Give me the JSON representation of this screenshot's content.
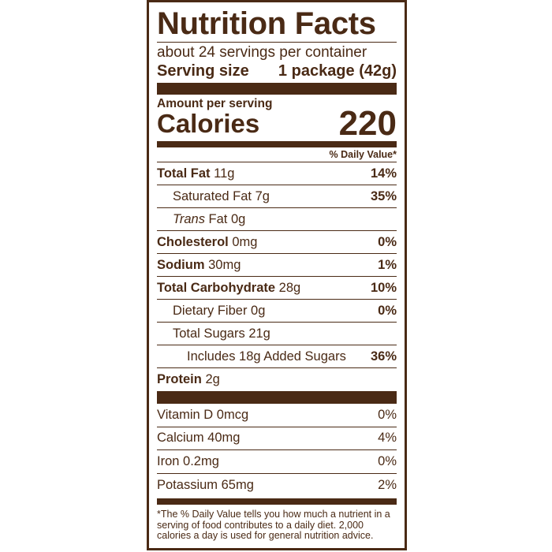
{
  "label": {
    "title": "Nutrition Facts",
    "servings_per_container": "about 24 servings per container",
    "serving_size_label": "Serving size",
    "serving_size_value": "1 package (42g)",
    "amount_per_serving": "Amount per serving",
    "calories_label": "Calories",
    "calories_value": "220",
    "daily_value_header": "% Daily Value*",
    "nutrients": {
      "total_fat": {
        "name": "Total Fat",
        "amount": "11g",
        "dv": "14%"
      },
      "saturated_fat": {
        "name": "Saturated Fat",
        "amount": "7g",
        "dv": "35%"
      },
      "trans_fat": {
        "name_italic": "Trans",
        "name": "Fat",
        "amount": "0g"
      },
      "cholesterol": {
        "name": "Cholesterol",
        "amount": "0mg",
        "dv": "0%"
      },
      "sodium": {
        "name": "Sodium",
        "amount": "30mg",
        "dv": "1%"
      },
      "total_carbohydrate": {
        "name": "Total Carbohydrate",
        "amount": "28g",
        "dv": "10%"
      },
      "dietary_fiber": {
        "name": "Dietary Fiber",
        "amount": "0g",
        "dv": "0%"
      },
      "total_sugars": {
        "name": "Total Sugars",
        "amount": "21g"
      },
      "added_sugars": {
        "text": "Includes 18g Added Sugars",
        "dv": "36%"
      },
      "protein": {
        "name": "Protein",
        "amount": "2g"
      }
    },
    "vitamins": [
      {
        "text": "Vitamin D 0mcg",
        "dv": "0%"
      },
      {
        "text": "Calcium 40mg",
        "dv": "4%"
      },
      {
        "text": "Iron 0.2mg",
        "dv": "0%"
      },
      {
        "text": "Potassium 65mg",
        "dv": "2%"
      }
    ],
    "footnote": "*The % Daily Value tells you how much a nutrient in a serving of food contributes to a daily diet. 2,000 calories a day is used for general nutrition advice."
  },
  "colors": {
    "ink": "#4a2a15",
    "background": "#ffffff"
  }
}
